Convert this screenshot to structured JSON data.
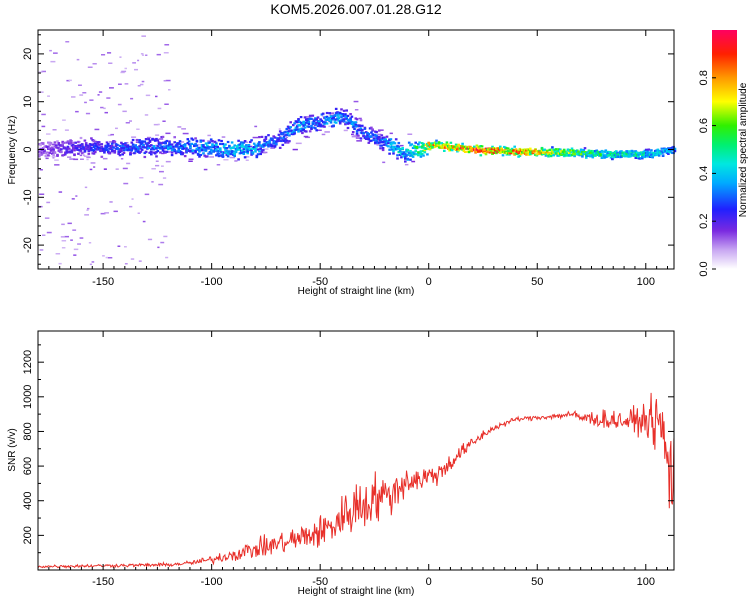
{
  "title": "KOM5.2026.007.01.28.G12",
  "chart_data": [
    {
      "type": "heatmap",
      "xlabel": "Height of straight line (km)",
      "ylabel": "Frequency (Hz)",
      "xlim": [
        -180,
        113
      ],
      "ylim": [
        -25,
        25
      ],
      "xticks": [
        -150,
        -100,
        -50,
        0,
        50,
        100
      ],
      "yticks": [
        -20,
        -10,
        0,
        10,
        20
      ],
      "xtick_labels": [
        "-150",
        "-100",
        "-50",
        "0",
        "50",
        "100"
      ],
      "ytick_labels": [
        "-20",
        "-10",
        "0",
        "10",
        "20"
      ],
      "ridge": {
        "x": [
          -180,
          -160,
          -140,
          -120,
          -100,
          -90,
          -80,
          -70,
          -65,
          -60,
          -55,
          -50,
          -45,
          -40,
          -35,
          -30,
          -25,
          -20,
          -15,
          -10,
          -5,
          0,
          10,
          20,
          40,
          60,
          80,
          100,
          113
        ],
        "frequency": [
          0,
          0.3,
          0.5,
          0.6,
          0.3,
          0,
          0.3,
          2,
          3.5,
          5,
          5.5,
          6,
          6.5,
          6.5,
          5.5,
          3.5,
          2.5,
          1.5,
          0,
          -0.5,
          0,
          1,
          0.5,
          0,
          -0.5,
          -0.5,
          -1,
          -1,
          0
        ],
        "amplitude": [
          0.15,
          0.25,
          0.3,
          0.35,
          0.4,
          0.45,
          0.4,
          0.3,
          0.35,
          0.4,
          0.35,
          0.35,
          0.4,
          0.35,
          0.35,
          0.3,
          0.3,
          0.35,
          0.45,
          0.5,
          0.6,
          0.8,
          0.9,
          0.95,
          0.9,
          0.7,
          0.55,
          0.5,
          0.4
        ]
      },
      "colorbar": {
        "label": "Normalized spectral amplitude",
        "range": [
          0,
          1
        ],
        "ticks": [
          0.0,
          0.2,
          0.4,
          0.6,
          0.8
        ],
        "tick_labels": [
          "0.0",
          "0.2",
          "0.4",
          "0.6",
          "0.8"
        ]
      }
    },
    {
      "type": "line",
      "xlabel": "Height of straight line (km)",
      "ylabel": "SNR (v/v)",
      "xlim": [
        -180,
        113
      ],
      "ylim": [
        0,
        1380
      ],
      "xticks": [
        -150,
        -100,
        -50,
        0,
        50,
        100
      ],
      "yticks": [
        200,
        400,
        600,
        800,
        1000,
        1200
      ],
      "xtick_labels": [
        "-150",
        "-100",
        "-50",
        "0",
        "50",
        "100"
      ],
      "ytick_labels": [
        "200",
        "400",
        "600",
        "800",
        "1000",
        "1200"
      ],
      "series": [
        {
          "color": "#e8302a",
          "envelope": {
            "x": [
              -180,
              -150,
              -120,
              -110,
              -100,
              -90,
              -80,
              -70,
              -60,
              -55,
              -50,
              -45,
              -40,
              -35,
              -30,
              -25,
              -20,
              -15,
              -10,
              -5,
              0,
              5,
              10,
              15,
              20,
              25,
              30,
              40,
              50,
              60,
              65,
              70,
              80,
              90,
              95,
              100,
              105,
              108,
              110,
              112,
              113
            ],
            "mean": [
              20,
              25,
              30,
              40,
              60,
              90,
              120,
              150,
              180,
              200,
              220,
              250,
              300,
              360,
              380,
              420,
              420,
              460,
              520,
              520,
              540,
              560,
              620,
              680,
              730,
              780,
              820,
              870,
              880,
              890,
              900,
              880,
              870,
              860,
              860,
              870,
              850,
              800,
              600,
              500,
              700
            ],
            "noise": [
              10,
              10,
              12,
              15,
              25,
              45,
              60,
              70,
              90,
              100,
              110,
              120,
              140,
              180,
              180,
              160,
              140,
              120,
              100,
              90,
              80,
              70,
              60,
              50,
              40,
              30,
              20,
              15,
              15,
              20,
              25,
              40,
              60,
              70,
              80,
              100,
              180,
              250,
              350,
              350,
              300
            ]
          }
        }
      ]
    }
  ]
}
